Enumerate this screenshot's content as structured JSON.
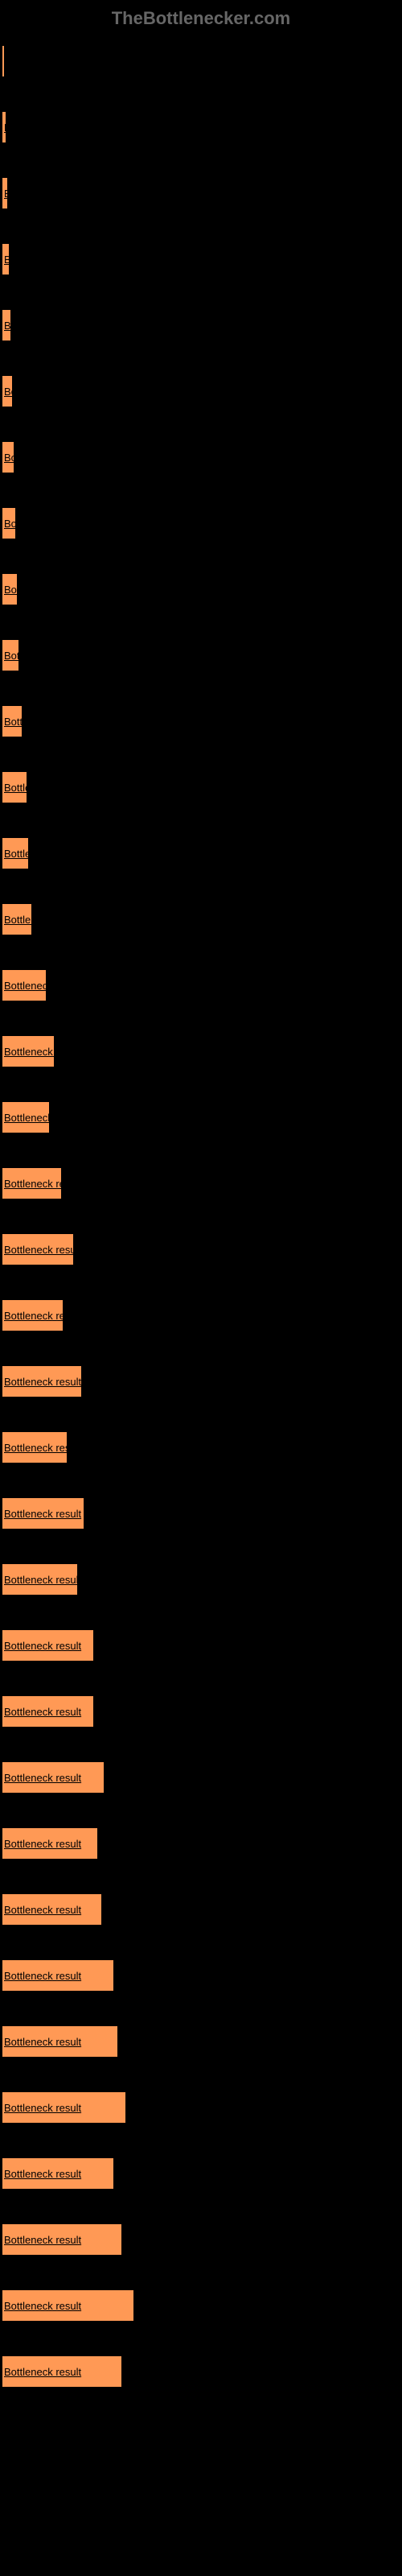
{
  "watermark": "TheBottlenecker.com",
  "chart": {
    "type": "bar",
    "bar_color": "#ff9955",
    "background_color": "#000000",
    "text_color": "#000000",
    "label_text": "Bottleneck result",
    "max_width": 180,
    "bars": [
      {
        "width": 4
      },
      {
        "width": 6
      },
      {
        "width": 8
      },
      {
        "width": 10
      },
      {
        "width": 12
      },
      {
        "width": 14
      },
      {
        "width": 16
      },
      {
        "width": 18
      },
      {
        "width": 20
      },
      {
        "width": 22
      },
      {
        "width": 26
      },
      {
        "width": 32
      },
      {
        "width": 34
      },
      {
        "width": 38
      },
      {
        "width": 56
      },
      {
        "width": 66
      },
      {
        "width": 60
      },
      {
        "width": 75
      },
      {
        "width": 90
      },
      {
        "width": 77
      },
      {
        "width": 100
      },
      {
        "width": 82
      },
      {
        "width": 103
      },
      {
        "width": 95
      },
      {
        "width": 115
      },
      {
        "width": 115
      },
      {
        "width": 128
      },
      {
        "width": 120
      },
      {
        "width": 125
      },
      {
        "width": 140
      },
      {
        "width": 145
      },
      {
        "width": 155
      },
      {
        "width": 140
      },
      {
        "width": 150
      },
      {
        "width": 165
      },
      {
        "width": 150
      }
    ]
  }
}
